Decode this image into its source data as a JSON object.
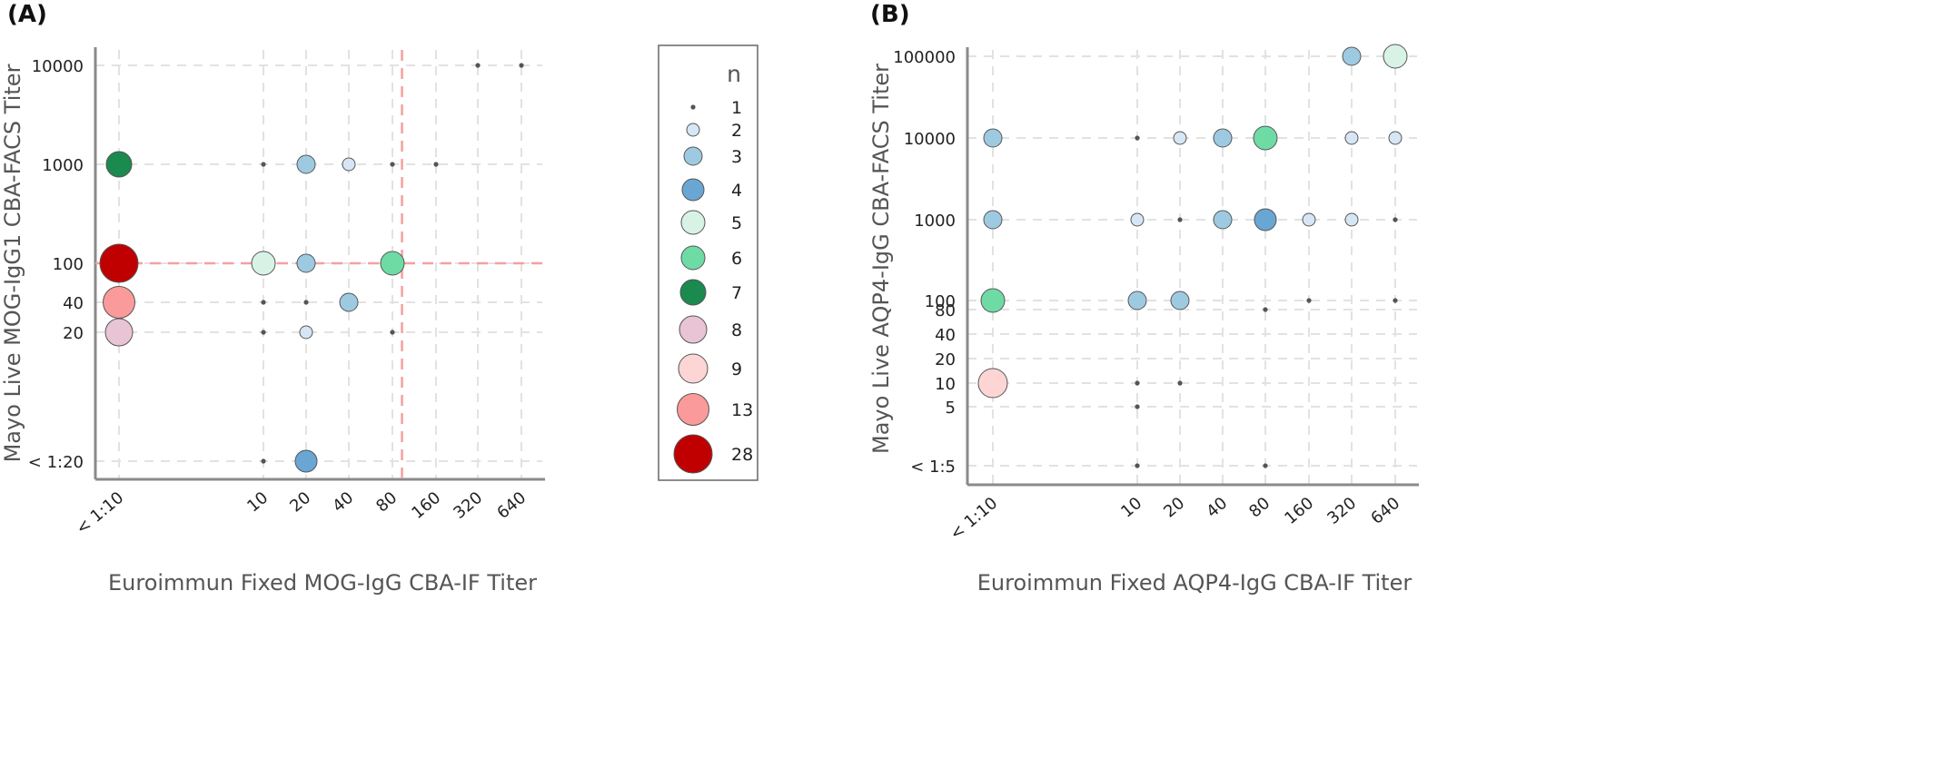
{
  "panels": [
    {
      "label": "(A)",
      "xlabel": "Euroimmun Fixed MOG-IgG CBA-IF Titer",
      "ylabel": "Mayo Live MOG-IgG1 CBA-FACS Titer"
    },
    {
      "label": "(B)",
      "xlabel": "Euroimmun Fixed AQP4-IgG CBA-IF Titer",
      "ylabel": "Mayo Live AQP4-IgG CBA-FACS Titer"
    }
  ],
  "legend": {
    "title": "n",
    "entries": [
      {
        "n": "1",
        "color": "#555555"
      },
      {
        "n": "2",
        "color": "#d6e6f4"
      },
      {
        "n": "3",
        "color": "#9ecae1"
      },
      {
        "n": "4",
        "color": "#6aa6d4"
      },
      {
        "n": "5",
        "color": "#d8f3e6"
      },
      {
        "n": "6",
        "color": "#6fdba4"
      },
      {
        "n": "7",
        "color": "#1a8a4e"
      },
      {
        "n": "8",
        "color": "#e8c4d4"
      },
      {
        "n": "9",
        "color": "#fdd5d5"
      },
      {
        "n": "13",
        "color": "#fb9a9a"
      },
      {
        "n": "28",
        "color": "#c00000"
      }
    ]
  },
  "chart_data": [
    {
      "type": "scatter",
      "title": "",
      "xlabel": "Euroimmun Fixed MOG-IgG CBA-IF Titer",
      "ylabel": "Mayo Live MOG-IgG1 CBA-FACS Titer",
      "x_ticks": [
        "< 1:10",
        "10",
        "20",
        "40",
        "80",
        "160",
        "320",
        "640"
      ],
      "y_ticks": [
        "< 1:20",
        "20",
        "40",
        "100",
        "1000",
        "10000"
      ],
      "y_scale": "log",
      "grid": true,
      "reference_lines": {
        "x_between": [
          "80",
          "160"
        ],
        "y": "100",
        "color": "#f4a0a0"
      },
      "points": [
        {
          "x": "< 1:10",
          "y": "1000",
          "n": 7
        },
        {
          "x": "< 1:10",
          "y": "100",
          "n": 28
        },
        {
          "x": "< 1:10",
          "y": "40",
          "n": 13
        },
        {
          "x": "< 1:10",
          "y": "20",
          "n": 8
        },
        {
          "x": "10",
          "y": "1000",
          "n": 1
        },
        {
          "x": "10",
          "y": "100",
          "n": 5
        },
        {
          "x": "10",
          "y": "40",
          "n": 1
        },
        {
          "x": "10",
          "y": "20",
          "n": 1
        },
        {
          "x": "10",
          "y": "< 1:20",
          "n": 1
        },
        {
          "x": "20",
          "y": "1000",
          "n": 3
        },
        {
          "x": "20",
          "y": "100",
          "n": 3
        },
        {
          "x": "20",
          "y": "40",
          "n": 1
        },
        {
          "x": "20",
          "y": "20",
          "n": 2
        },
        {
          "x": "20",
          "y": "< 1:20",
          "n": 4
        },
        {
          "x": "40",
          "y": "1000",
          "n": 2
        },
        {
          "x": "40",
          "y": "40",
          "n": 3
        },
        {
          "x": "80",
          "y": "1000",
          "n": 1
        },
        {
          "x": "80",
          "y": "100",
          "n": 6
        },
        {
          "x": "80",
          "y": "20",
          "n": 1
        },
        {
          "x": "160",
          "y": "1000",
          "n": 1
        },
        {
          "x": "320",
          "y": "10000",
          "n": 1
        },
        {
          "x": "640",
          "y": "10000",
          "n": 1
        }
      ]
    },
    {
      "type": "scatter",
      "title": "",
      "xlabel": "Euroimmun Fixed AQP4-IgG CBA-IF Titer",
      "ylabel": "Mayo Live AQP4-IgG CBA-FACS Titer",
      "x_ticks": [
        "< 1:10",
        "10",
        "20",
        "40",
        "80",
        "160",
        "320",
        "640"
      ],
      "y_ticks": [
        "< 1:5",
        "5",
        "10",
        "20",
        "40",
        "80",
        "100",
        "1000",
        "10000",
        "100000"
      ],
      "y_scale": "log",
      "grid": true,
      "points": [
        {
          "x": "< 1:10",
          "y": "10000",
          "n": 3
        },
        {
          "x": "< 1:10",
          "y": "1000",
          "n": 3
        },
        {
          "x": "< 1:10",
          "y": "100",
          "n": 6
        },
        {
          "x": "< 1:10",
          "y": "10",
          "n": 9
        },
        {
          "x": "10",
          "y": "10000",
          "n": 1
        },
        {
          "x": "10",
          "y": "1000",
          "n": 2
        },
        {
          "x": "10",
          "y": "100",
          "n": 3
        },
        {
          "x": "10",
          "y": "10",
          "n": 1
        },
        {
          "x": "10",
          "y": "5",
          "n": 1
        },
        {
          "x": "10",
          "y": "< 1:5",
          "n": 1
        },
        {
          "x": "20",
          "y": "10000",
          "n": 2
        },
        {
          "x": "20",
          "y": "1000",
          "n": 1
        },
        {
          "x": "20",
          "y": "100",
          "n": 3
        },
        {
          "x": "20",
          "y": "10",
          "n": 1
        },
        {
          "x": "40",
          "y": "10000",
          "n": 3
        },
        {
          "x": "40",
          "y": "1000",
          "n": 3
        },
        {
          "x": "80",
          "y": "10000",
          "n": 6
        },
        {
          "x": "80",
          "y": "1000",
          "n": 4
        },
        {
          "x": "80",
          "y": "80",
          "n": 1
        },
        {
          "x": "80",
          "y": "< 1:5",
          "n": 1
        },
        {
          "x": "160",
          "y": "1000",
          "n": 2
        },
        {
          "x": "160",
          "y": "100",
          "n": 1
        },
        {
          "x": "320",
          "y": "100000",
          "n": 3
        },
        {
          "x": "320",
          "y": "10000",
          "n": 2
        },
        {
          "x": "320",
          "y": "1000",
          "n": 2
        },
        {
          "x": "640",
          "y": "100000",
          "n": 5
        },
        {
          "x": "640",
          "y": "10000",
          "n": 2
        },
        {
          "x": "640",
          "y": "1000",
          "n": 1
        },
        {
          "x": "640",
          "y": "100",
          "n": 1
        }
      ]
    }
  ]
}
